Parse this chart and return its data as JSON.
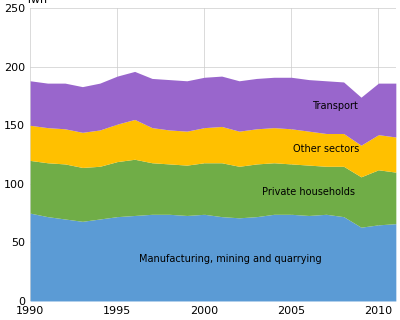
{
  "years": [
    1990,
    1991,
    1992,
    1993,
    1994,
    1995,
    1996,
    1997,
    1998,
    1999,
    2000,
    2001,
    2002,
    2003,
    2004,
    2005,
    2006,
    2007,
    2008,
    2009,
    2010,
    2011
  ],
  "manufacturing": [
    75,
    72,
    70,
    68,
    70,
    72,
    73,
    74,
    74,
    73,
    74,
    72,
    71,
    72,
    74,
    74,
    73,
    74,
    72,
    63,
    65,
    66
  ],
  "private_households": [
    45,
    46,
    47,
    46,
    45,
    47,
    48,
    44,
    43,
    43,
    44,
    46,
    44,
    45,
    44,
    43,
    43,
    41,
    43,
    43,
    47,
    44
  ],
  "other_sectors": [
    30,
    30,
    30,
    30,
    31,
    32,
    34,
    30,
    29,
    29,
    30,
    31,
    30,
    30,
    30,
    30,
    29,
    28,
    28,
    27,
    30,
    30
  ],
  "transport": [
    38,
    38,
    39,
    39,
    40,
    41,
    41,
    42,
    43,
    43,
    43,
    43,
    43,
    43,
    43,
    44,
    44,
    45,
    44,
    41,
    44,
    46
  ],
  "colors": {
    "manufacturing": "#5b9bd5",
    "private_households": "#70ad47",
    "other_sectors": "#ffc000",
    "transport": "#9966cc"
  },
  "xlim": [
    1990,
    2011
  ],
  "ylim": [
    0,
    250
  ],
  "yticks": [
    0,
    50,
    100,
    150,
    200,
    250
  ],
  "xticks": [
    1990,
    1995,
    2000,
    2005,
    2010
  ],
  "label_transport": "Transport",
  "label_other": "Other sectors",
  "label_private": "Private households",
  "label_manufacturing": "Manufacturing, mining and quarrying",
  "background_color": "#ffffff"
}
